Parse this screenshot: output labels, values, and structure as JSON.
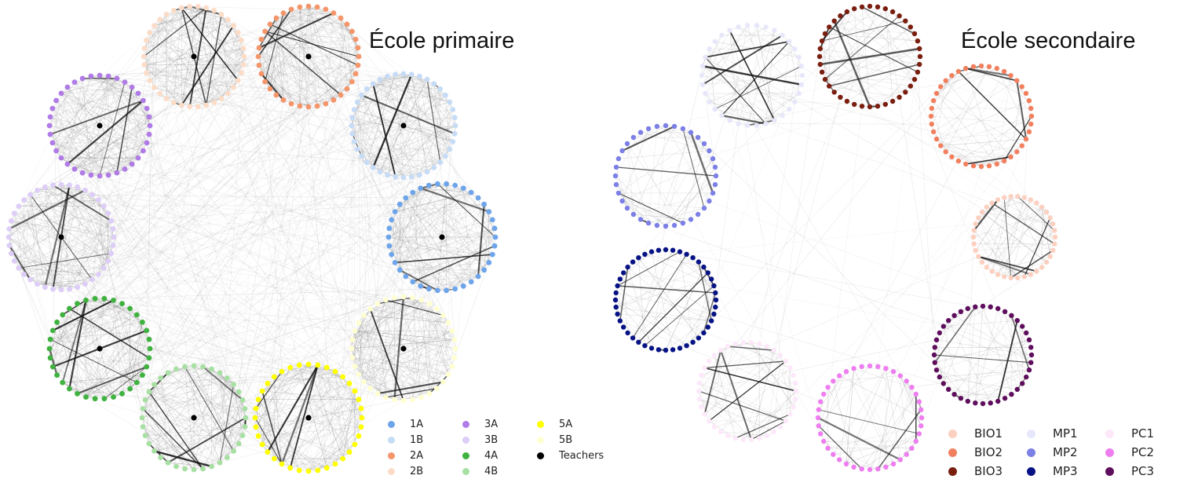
{
  "titles": {
    "primary": "École primaire",
    "secondary": "École secondaire"
  },
  "colors": {
    "1A": "#6ea5ea",
    "1B": "#c6dcf6",
    "2A": "#f4956a",
    "2B": "#fcdcc7",
    "3A": "#b07be6",
    "3B": "#ddcdf7",
    "4A": "#3fb23f",
    "4B": "#a8e0a3",
    "5A": "#ffff00",
    "5B": "#ffffd2",
    "Teachers": "#000000",
    "BIO1": "#fcd0c0",
    "BIO2": "#f2805f",
    "BIO3": "#7a1e10",
    "MP1": "#e7e7fc",
    "MP2": "#7b7fe6",
    "MP3": "#071385",
    "PC1": "#fde8fa",
    "PC2": "#ee7ef0",
    "PC3": "#5e0e5c"
  },
  "legend_primary": [
    [
      "1A",
      "1B"
    ],
    [
      "2A",
      "2B"
    ],
    [
      "3A",
      "3B"
    ],
    [
      "4A",
      "4B"
    ],
    [
      "5A",
      "5B"
    ],
    [
      "Teachers"
    ]
  ],
  "legend_secondary": [
    [
      "BIO1",
      "BIO2",
      "BIO3"
    ],
    [
      "MP1",
      "MP2",
      "MP3"
    ],
    [
      "PC1",
      "PC2",
      "PC3"
    ]
  ],
  "primary_clusters": [
    {
      "label": "2B",
      "nodes": 38,
      "teacher": true
    },
    {
      "label": "2A",
      "nodes": 36,
      "teacher": true
    },
    {
      "label": "1B",
      "nodes": 40,
      "teacher": true
    },
    {
      "label": "1A",
      "nodes": 38,
      "teacher": true
    },
    {
      "label": "5B",
      "nodes": 36,
      "teacher": true
    },
    {
      "label": "5A",
      "nodes": 36,
      "teacher": true
    },
    {
      "label": "4B",
      "nodes": 36,
      "teacher": true
    },
    {
      "label": "4A",
      "nodes": 34,
      "teacher": true
    },
    {
      "label": "3B",
      "nodes": 40,
      "teacher": true
    },
    {
      "label": "3A",
      "nodes": 36,
      "teacher": true
    }
  ],
  "secondary_clusters": [
    {
      "label": "MP1",
      "nodes": 34,
      "teacher": false
    },
    {
      "label": "BIO3",
      "nodes": 40,
      "teacher": false
    },
    {
      "label": "BIO2",
      "nodes": 40,
      "teacher": false
    },
    {
      "label": "BIO1",
      "nodes": 38,
      "teacher": false
    },
    {
      "label": "PC3",
      "nodes": 40,
      "teacher": false
    },
    {
      "label": "PC2",
      "nodes": 40,
      "teacher": false
    },
    {
      "label": "PC1",
      "nodes": 38,
      "teacher": false
    },
    {
      "label": "MP3",
      "nodes": 44,
      "teacher": false
    },
    {
      "label": "MP2",
      "nodes": 36,
      "teacher": false
    }
  ]
}
